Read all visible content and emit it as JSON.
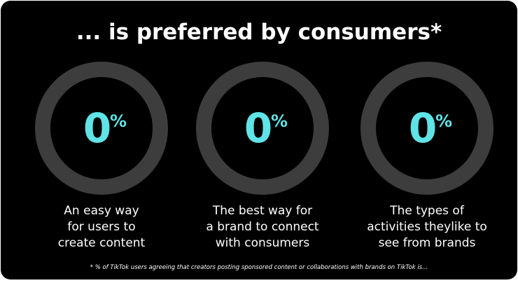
{
  "title": "... is preferred by consumers*",
  "stats": [
    {
      "value": 0,
      "unit": "%",
      "label": [
        "An easy way",
        "for users to",
        "create content"
      ]
    },
    {
      "value": 0,
      "unit": "%",
      "label": [
        "The best way for",
        "a brand to connect",
        "with consumers"
      ]
    },
    {
      "value": 0,
      "unit": "%",
      "label": [
        "The types of",
        "activities theylike to",
        "see from brands"
      ]
    }
  ],
  "footnote": "* % of TikTok users agreeing that creators posting sponsored content or collaborations with brands on TikTok is..."
}
